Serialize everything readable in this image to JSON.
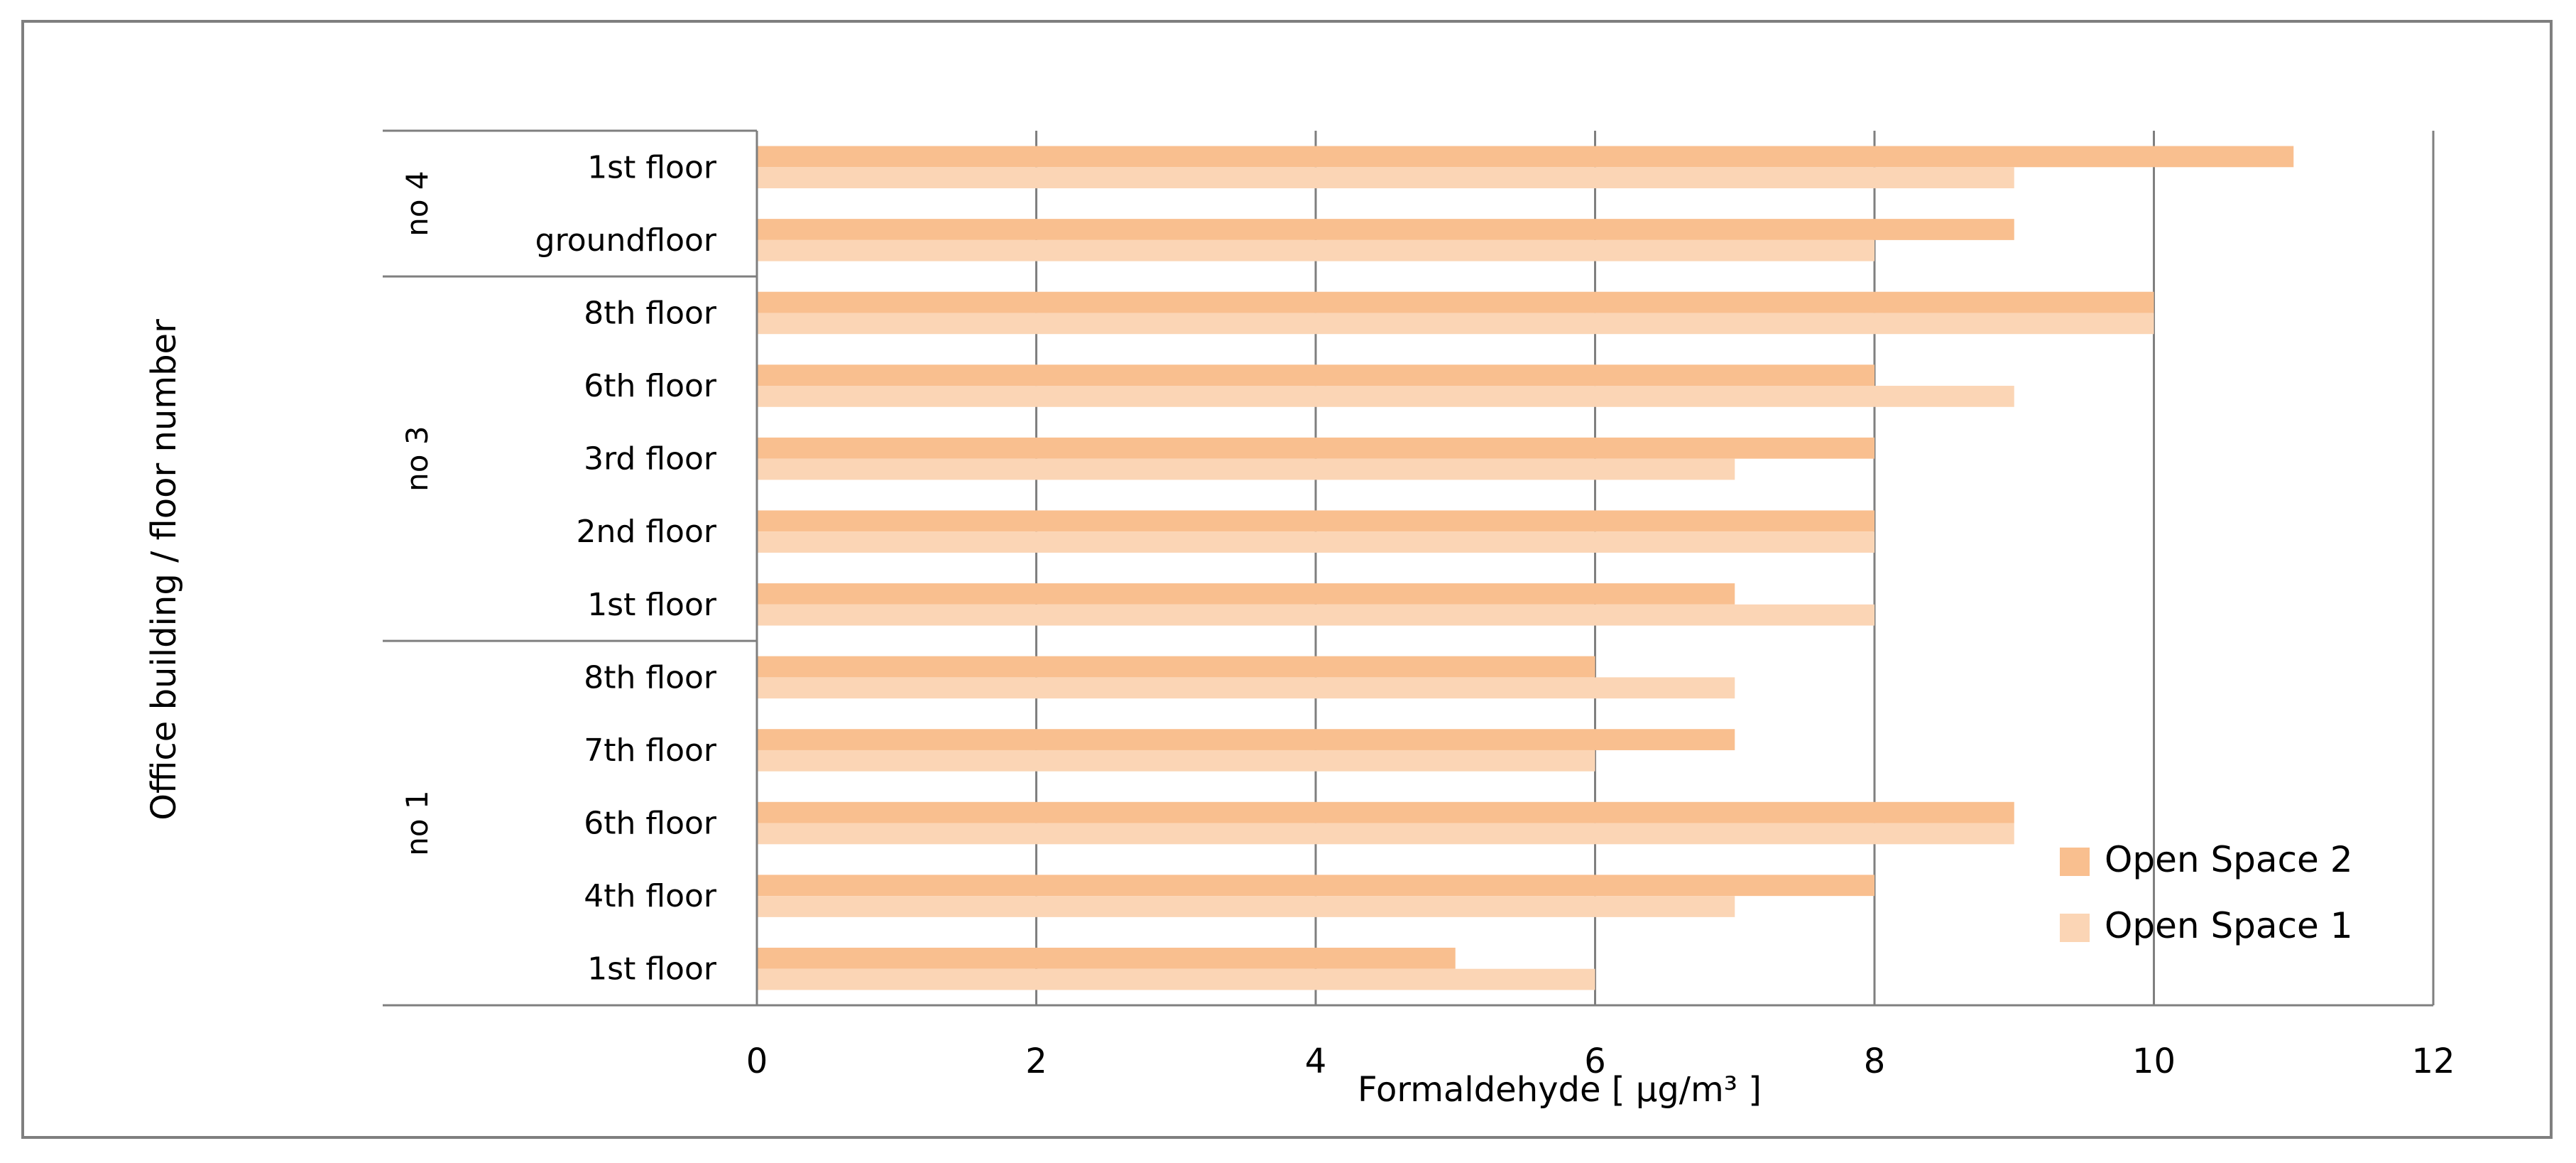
{
  "chart_data": {
    "type": "bar",
    "orientation": "horizontal",
    "title": "",
    "xlabel": "Formaldehyde [ µg/m³ ]",
    "ylabel": "Office building  / floor number",
    "xlim": [
      0,
      12
    ],
    "xticks": [
      0,
      2,
      4,
      6,
      8,
      10,
      12
    ],
    "grid": true,
    "legend_position": "bottom-right",
    "groups": [
      {
        "name": "no 4",
        "categories": [
          "1st floor",
          "groundfloor"
        ]
      },
      {
        "name": "no 3",
        "categories": [
          "8th floor",
          "6th floor",
          "3rd floor",
          "2nd floor",
          "1st floor"
        ]
      },
      {
        "name": "no 1",
        "categories": [
          "8th floor",
          "7th floor",
          "6th floor",
          "4th floor",
          "1st floor"
        ]
      }
    ],
    "series": [
      {
        "name": "Open Space 2",
        "color": "#f9bf8f",
        "values": [
          11,
          9,
          10,
          8,
          8,
          8,
          7,
          6,
          7,
          9,
          8,
          5
        ]
      },
      {
        "name": "Open Space 1",
        "color": "#fbd5b5",
        "values": [
          9,
          8,
          10,
          9,
          7,
          8,
          8,
          7,
          6,
          9,
          7,
          6
        ]
      }
    ]
  },
  "colors": {
    "gridline": "#7f7f7f",
    "frame": "#7f7f7f"
  }
}
